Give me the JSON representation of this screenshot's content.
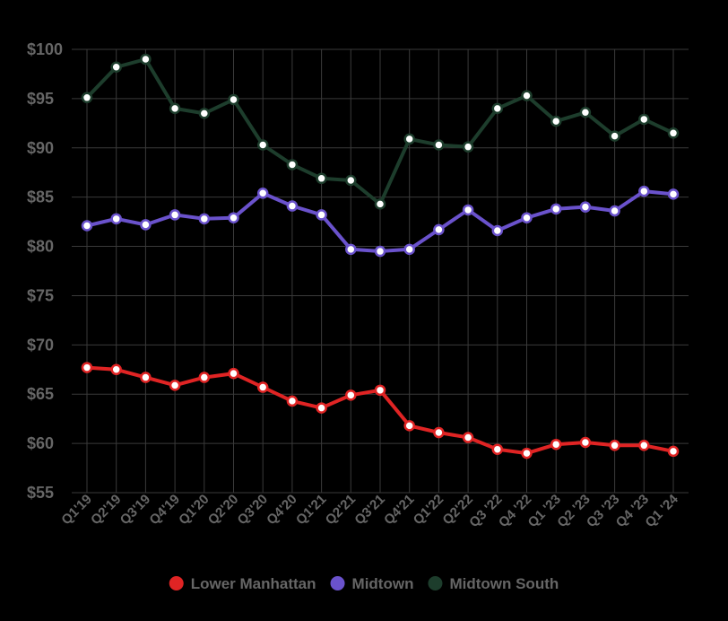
{
  "chart_data": {
    "type": "line",
    "title": "",
    "xlabel": "",
    "ylabel": "",
    "ylim": [
      55,
      100
    ],
    "y_ticks": [
      55,
      60,
      65,
      70,
      75,
      80,
      85,
      90,
      95,
      100
    ],
    "y_tick_labels": [
      "$55",
      "$60",
      "$65",
      "$70",
      "$75",
      "$80",
      "$85",
      "$90",
      "$95",
      "$100"
    ],
    "grid": true,
    "legend_position": "bottom",
    "categories": [
      "Q1'19",
      "Q2'19",
      "Q3'19",
      "Q4'19",
      "Q1'20",
      "Q2'20",
      "Q3'20",
      "Q4'20",
      "Q1'21",
      "Q2'21",
      "Q3'21",
      "Q4'21",
      "Q1'22",
      "Q2'22",
      "Q3 '22",
      "Q4 '22",
      "Q1 '23",
      "Q2 '23",
      "Q3 '23",
      "Q4 '23",
      "Q1 '24"
    ],
    "series": [
      {
        "name": "Lower Manhattan",
        "color": "#e02424",
        "values": [
          67.7,
          67.5,
          66.7,
          65.9,
          66.7,
          67.1,
          65.7,
          64.3,
          63.6,
          64.9,
          65.4,
          61.8,
          61.1,
          60.6,
          59.4,
          59.0,
          59.9,
          60.1,
          59.8,
          59.8,
          59.2
        ]
      },
      {
        "name": "Midtown",
        "color": "#6a52cc",
        "values": [
          82.1,
          82.8,
          82.2,
          83.2,
          82.8,
          82.9,
          85.4,
          84.1,
          83.2,
          79.7,
          79.5,
          79.7,
          81.7,
          83.7,
          81.6,
          82.9,
          83.8,
          84.0,
          83.6,
          85.6,
          85.3
        ]
      },
      {
        "name": "Midtown South",
        "color": "#1d3d2c",
        "values": [
          95.1,
          98.2,
          99.0,
          94.0,
          93.5,
          94.9,
          90.3,
          88.3,
          86.9,
          86.7,
          84.3,
          90.9,
          90.3,
          90.1,
          94.0,
          95.3,
          92.7,
          93.6,
          91.2,
          92.9,
          91.5
        ]
      }
    ]
  }
}
